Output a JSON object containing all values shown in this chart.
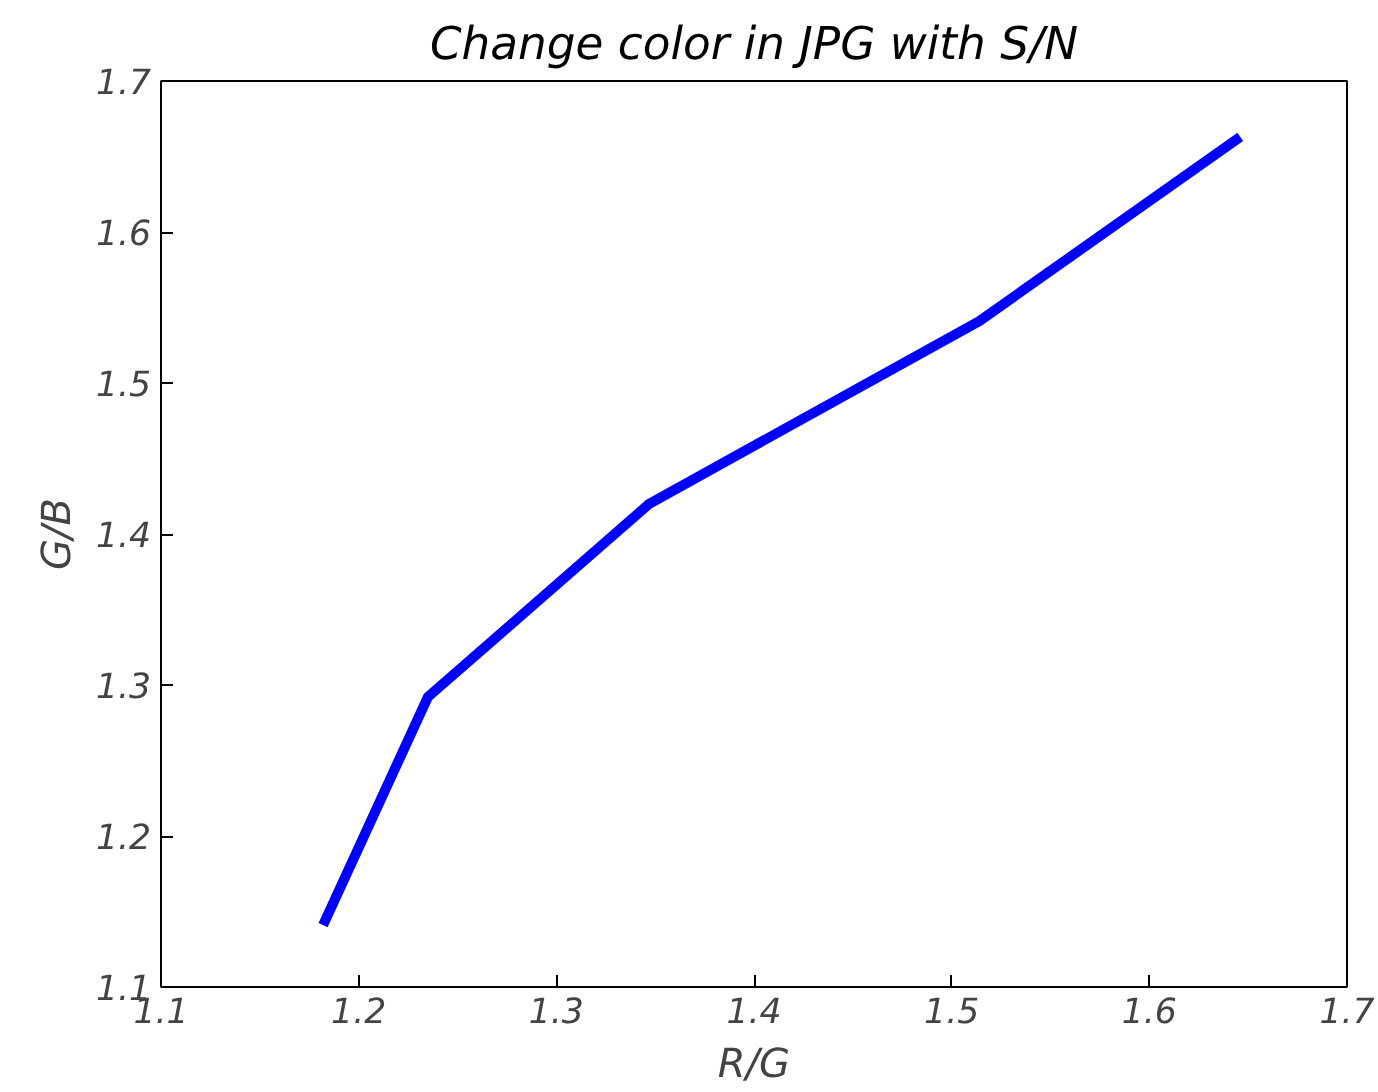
{
  "chart_data": {
    "type": "line",
    "title": "Change color in JPG with S/N",
    "xlabel": "R/G",
    "ylabel": "G/B",
    "x": [
      1.182,
      1.235,
      1.347,
      1.514,
      1.646
    ],
    "series": [
      {
        "color": "#0000ff",
        "values": [
          1.141,
          1.292,
          1.42,
          1.541,
          1.663
        ]
      }
    ],
    "xlim": [
      1.1,
      1.7
    ],
    "ylim": [
      1.1,
      1.7
    ],
    "xticks": [
      1.1,
      1.2,
      1.3,
      1.4,
      1.5,
      1.6,
      1.7
    ],
    "yticks": [
      1.1,
      1.2,
      1.3,
      1.4,
      1.5,
      1.6,
      1.7
    ],
    "grid": false
  }
}
